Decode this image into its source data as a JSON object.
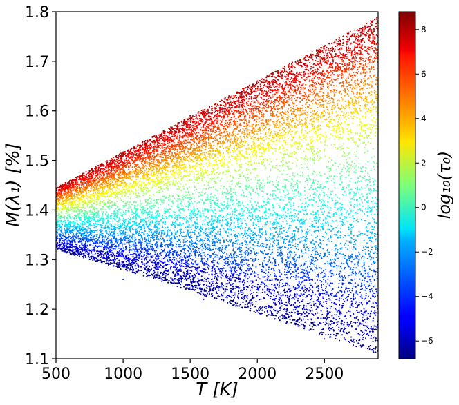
{
  "chart_data": {
    "type": "scatter",
    "x_label": "T [K]",
    "y_label": "M(λ₁) [%]",
    "colorbar_label": "log₁₀(τ₀)",
    "xlim": [
      500,
      2900
    ],
    "ylim": [
      1.1,
      1.8
    ],
    "x_ticks": [
      500,
      1000,
      1500,
      2000,
      2500
    ],
    "x_tick_labels": [
      "500",
      "1000",
      "1500",
      "2000",
      "2500"
    ],
    "y_ticks": [
      1.1,
      1.2,
      1.3,
      1.4,
      1.5,
      1.6,
      1.7,
      1.8
    ],
    "y_tick_labels": [
      "1.1",
      "1.2",
      "1.3",
      "1.4",
      "1.5",
      "1.6",
      "1.7",
      "1.8"
    ],
    "colorbar": {
      "colormap": "jet",
      "range": [
        -6.8,
        8.8
      ],
      "ticks": [
        -6,
        -4,
        -2,
        0,
        2,
        4,
        6,
        8
      ],
      "tick_labels": [
        "−6",
        "−4",
        "−2",
        "0",
        "2",
        "4",
        "6",
        "8"
      ]
    },
    "envelope": {
      "description_values": "data-space bounds of the point cloud",
      "upper_at_500": 1.445,
      "upper_at_2900": 1.79,
      "lower_at_500": 1.32,
      "lower_at_1300": 1.255,
      "lower_at_2900": 1.11,
      "center_at_500": 1.39,
      "center_at_2900": 1.51
    },
    "color_relation": {
      "log_tau_at_center": 1.0,
      "log_tau_at_upper_edge": 8.0,
      "log_tau_at_lower_edge": -6.5
    },
    "sample_points": [
      {
        "x": 520,
        "y": 1.44,
        "c": 7.5
      },
      {
        "x": 700,
        "y": 1.47,
        "c": 7.8
      },
      {
        "x": 1000,
        "y": 1.51,
        "c": 8.0
      },
      {
        "x": 1500,
        "y": 1.59,
        "c": 8.0
      },
      {
        "x": 2000,
        "y": 1.66,
        "c": 8.0
      },
      {
        "x": 2500,
        "y": 1.73,
        "c": 8.0
      },
      {
        "x": 2850,
        "y": 1.78,
        "c": 8.2
      },
      {
        "x": 600,
        "y": 1.4,
        "c": 1.0
      },
      {
        "x": 1200,
        "y": 1.43,
        "c": 2.2
      },
      {
        "x": 2000,
        "y": 1.47,
        "c": 2.0
      },
      {
        "x": 700,
        "y": 1.35,
        "c": -1.3
      },
      {
        "x": 1000,
        "y": 1.26,
        "c": -3.8
      },
      {
        "x": 1600,
        "y": 1.22,
        "c": -5.0
      },
      {
        "x": 2500,
        "y": 1.14,
        "c": -6.3
      },
      {
        "x": 2880,
        "y": 1.12,
        "c": -6.5
      }
    ],
    "n_points": 14000
  }
}
